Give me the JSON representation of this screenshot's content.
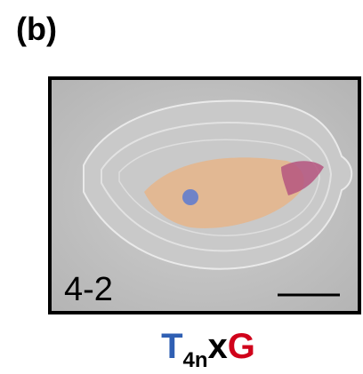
{
  "panel_label": "(b)",
  "image": {
    "label": "4-2"
  },
  "caption": {
    "main": "T",
    "subscript": "4n",
    "cross": "x",
    "partner": "G"
  }
}
